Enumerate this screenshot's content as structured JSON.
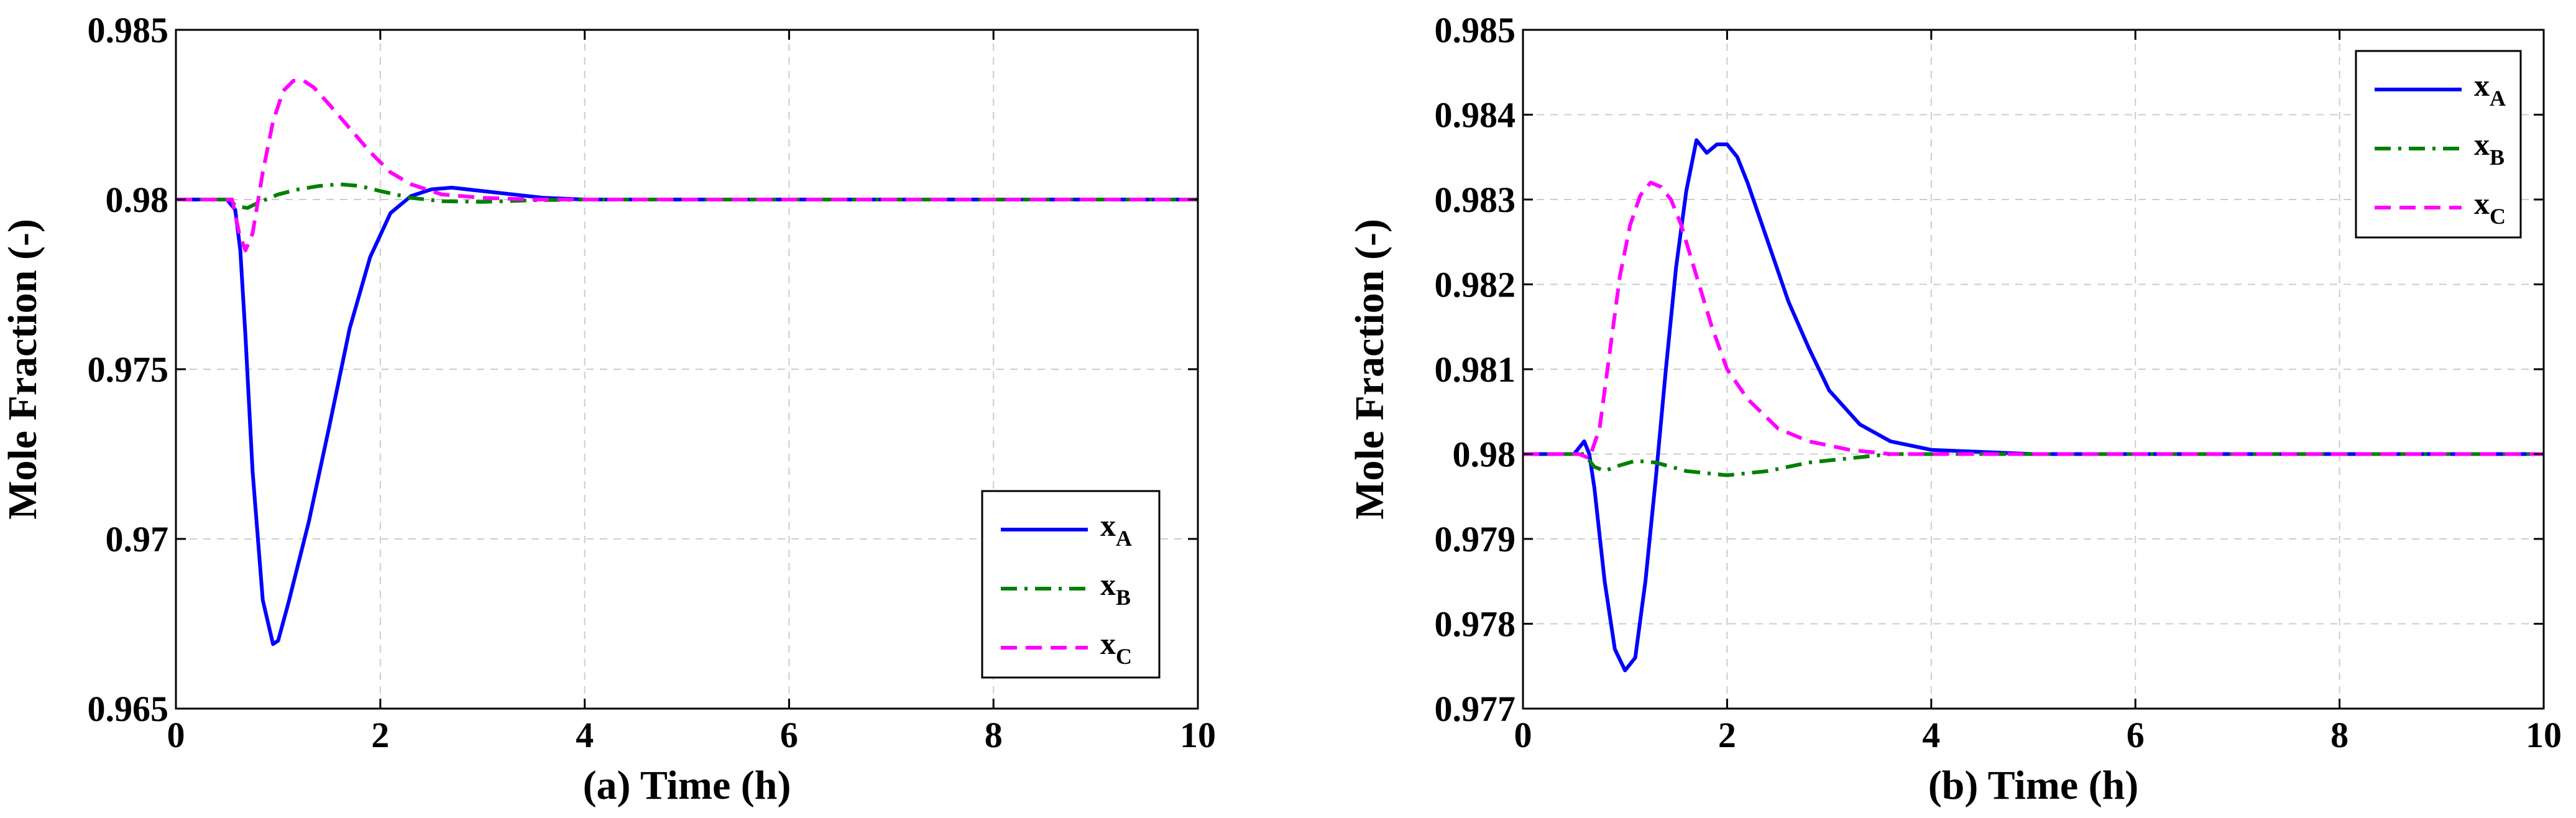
{
  "chart_data": [
    {
      "type": "line",
      "xlabel": "(a) Time (h)",
      "ylabel": "Mole Fraction (-)",
      "xlim": [
        0,
        10
      ],
      "ylim": [
        0.965,
        0.985
      ],
      "xticks": [
        "0",
        "2",
        "4",
        "6",
        "8",
        "10"
      ],
      "yticks": [
        "0.965",
        "0.97",
        "0.975",
        "0.98",
        "0.985"
      ],
      "grid": true,
      "legend_position": "bottom-right",
      "series": [
        {
          "name": "x",
          "sub": "A",
          "color": "#0000ff",
          "dash": "solid",
          "x": [
            0,
            0.5,
            0.58,
            0.63,
            0.68,
            0.75,
            0.85,
            0.95,
            1.0,
            1.1,
            1.3,
            1.5,
            1.7,
            1.9,
            2.1,
            2.3,
            2.5,
            2.7,
            3.0,
            3.3,
            3.6,
            4.0,
            5.0,
            10
          ],
          "y": [
            0.98,
            0.98,
            0.9797,
            0.9785,
            0.976,
            0.972,
            0.9682,
            0.9669,
            0.967,
            0.9681,
            0.9705,
            0.9733,
            0.9762,
            0.9783,
            0.9796,
            0.9801,
            0.9803,
            0.98035,
            0.98025,
            0.98015,
            0.98005,
            0.98,
            0.98,
            0.98
          ]
        },
        {
          "name": "x",
          "sub": "B",
          "color": "#008000",
          "dash": "dashdot",
          "x": [
            0,
            0.5,
            0.6,
            0.7,
            0.8,
            1.0,
            1.2,
            1.4,
            1.6,
            1.8,
            2.0,
            2.3,
            2.6,
            3.0,
            3.5,
            4.0,
            10
          ],
          "y": [
            0.98,
            0.98,
            0.9798,
            0.97975,
            0.9799,
            0.98015,
            0.9803,
            0.9804,
            0.98045,
            0.9804,
            0.98025,
            0.98005,
            0.97995,
            0.97993,
            0.97998,
            0.98,
            0.98
          ]
        },
        {
          "name": "x",
          "sub": "C",
          "color": "#ff00ff",
          "dash": "dashed",
          "x": [
            0,
            0.55,
            0.62,
            0.68,
            0.75,
            0.85,
            0.95,
            1.05,
            1.15,
            1.25,
            1.35,
            1.5,
            1.7,
            1.9,
            2.1,
            2.3,
            2.6,
            3.0,
            3.5,
            4.0,
            10
          ],
          "y": [
            0.98,
            0.98,
            0.979,
            0.9785,
            0.979,
            0.9808,
            0.9823,
            0.9832,
            0.9835,
            0.9835,
            0.9833,
            0.9828,
            0.9821,
            0.9814,
            0.9808,
            0.98045,
            0.98015,
            0.98005,
            0.98,
            0.98,
            0.98
          ]
        }
      ]
    },
    {
      "type": "line",
      "xlabel": "(b) Time (h)",
      "ylabel": "Mole Fraction (-)",
      "xlim": [
        0,
        10
      ],
      "ylim": [
        0.977,
        0.985
      ],
      "xticks": [
        "0",
        "2",
        "4",
        "6",
        "8",
        "10"
      ],
      "yticks": [
        "0.977",
        "0.978",
        "0.979",
        "0.98",
        "0.981",
        "0.982",
        "0.983",
        "0.984",
        "0.985"
      ],
      "grid": true,
      "legend_position": "top-right",
      "series": [
        {
          "name": "x",
          "sub": "A",
          "color": "#0000ff",
          "dash": "solid",
          "x": [
            0,
            0.5,
            0.6,
            0.65,
            0.7,
            0.8,
            0.9,
            1.0,
            1.1,
            1.2,
            1.3,
            1.4,
            1.5,
            1.6,
            1.7,
            1.8,
            1.9,
            2.0,
            2.1,
            2.2,
            2.4,
            2.6,
            2.8,
            3.0,
            3.3,
            3.6,
            4.0,
            5.0,
            6.0,
            10
          ],
          "y": [
            0.98,
            0.98,
            0.98015,
            0.98,
            0.9796,
            0.9785,
            0.9777,
            0.97745,
            0.9776,
            0.9785,
            0.9797,
            0.981,
            0.9822,
            0.9831,
            0.9837,
            0.98355,
            0.98365,
            0.98365,
            0.9835,
            0.9832,
            0.9825,
            0.9818,
            0.98125,
            0.98075,
            0.98035,
            0.98015,
            0.98005,
            0.98,
            0.98,
            0.98
          ]
        },
        {
          "name": "x",
          "sub": "B",
          "color": "#008000",
          "dash": "dashdot",
          "x": [
            0,
            0.5,
            0.6,
            0.7,
            0.8,
            0.9,
            1.1,
            1.3,
            1.6,
            2.0,
            2.4,
            2.8,
            3.2,
            3.6,
            4.0,
            5.0,
            10
          ],
          "y": [
            0.98,
            0.98,
            0.98,
            0.97985,
            0.9798,
            0.97985,
            0.97992,
            0.9799,
            0.9798,
            0.97975,
            0.9798,
            0.9799,
            0.97995,
            0.98,
            0.98,
            0.98,
            0.98
          ]
        },
        {
          "name": "x",
          "sub": "C",
          "color": "#ff00ff",
          "dash": "dashed",
          "x": [
            0,
            0.55,
            0.65,
            0.75,
            0.85,
            0.95,
            1.05,
            1.15,
            1.25,
            1.35,
            1.45,
            1.55,
            1.7,
            1.85,
            2.0,
            2.2,
            2.5,
            2.8,
            3.2,
            3.6,
            4.0,
            10
          ],
          "y": [
            0.98,
            0.98,
            0.97995,
            0.9803,
            0.9812,
            0.9821,
            0.9827,
            0.98305,
            0.9832,
            0.98315,
            0.983,
            0.9827,
            0.9821,
            0.9815,
            0.981,
            0.98065,
            0.9803,
            0.98015,
            0.98005,
            0.98,
            0.98,
            0.98
          ]
        }
      ]
    }
  ]
}
